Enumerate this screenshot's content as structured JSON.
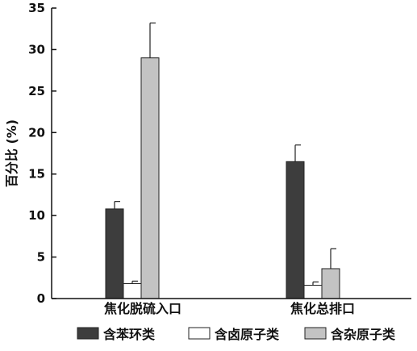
{
  "chart_data": {
    "type": "bar",
    "categories": [
      "焦化脱硫入口",
      "焦化总排口"
    ],
    "series": [
      {
        "name": "含苯环类",
        "values": [
          10.8,
          16.5
        ],
        "errors": [
          0.9,
          2.0
        ],
        "color": "#3d3d3d"
      },
      {
        "name": "含卤原子类",
        "values": [
          1.8,
          1.6
        ],
        "errors": [
          0.3,
          0.4
        ],
        "color": "#ffffff"
      },
      {
        "name": "含杂原子类",
        "values": [
          29.0,
          3.6
        ],
        "errors": [
          4.2,
          2.4
        ],
        "color": "#c3c3c3"
      }
    ],
    "ylabel": "百分比 (%)",
    "ylim": [
      0,
      35
    ],
    "yticks": [
      0,
      5,
      10,
      15,
      20,
      25,
      30,
      35
    ],
    "ytick_labels": [
      "0",
      "5",
      "10",
      "15",
      "20",
      "25",
      "30",
      "35"
    ],
    "grid": false,
    "legend_position": "bottom"
  }
}
